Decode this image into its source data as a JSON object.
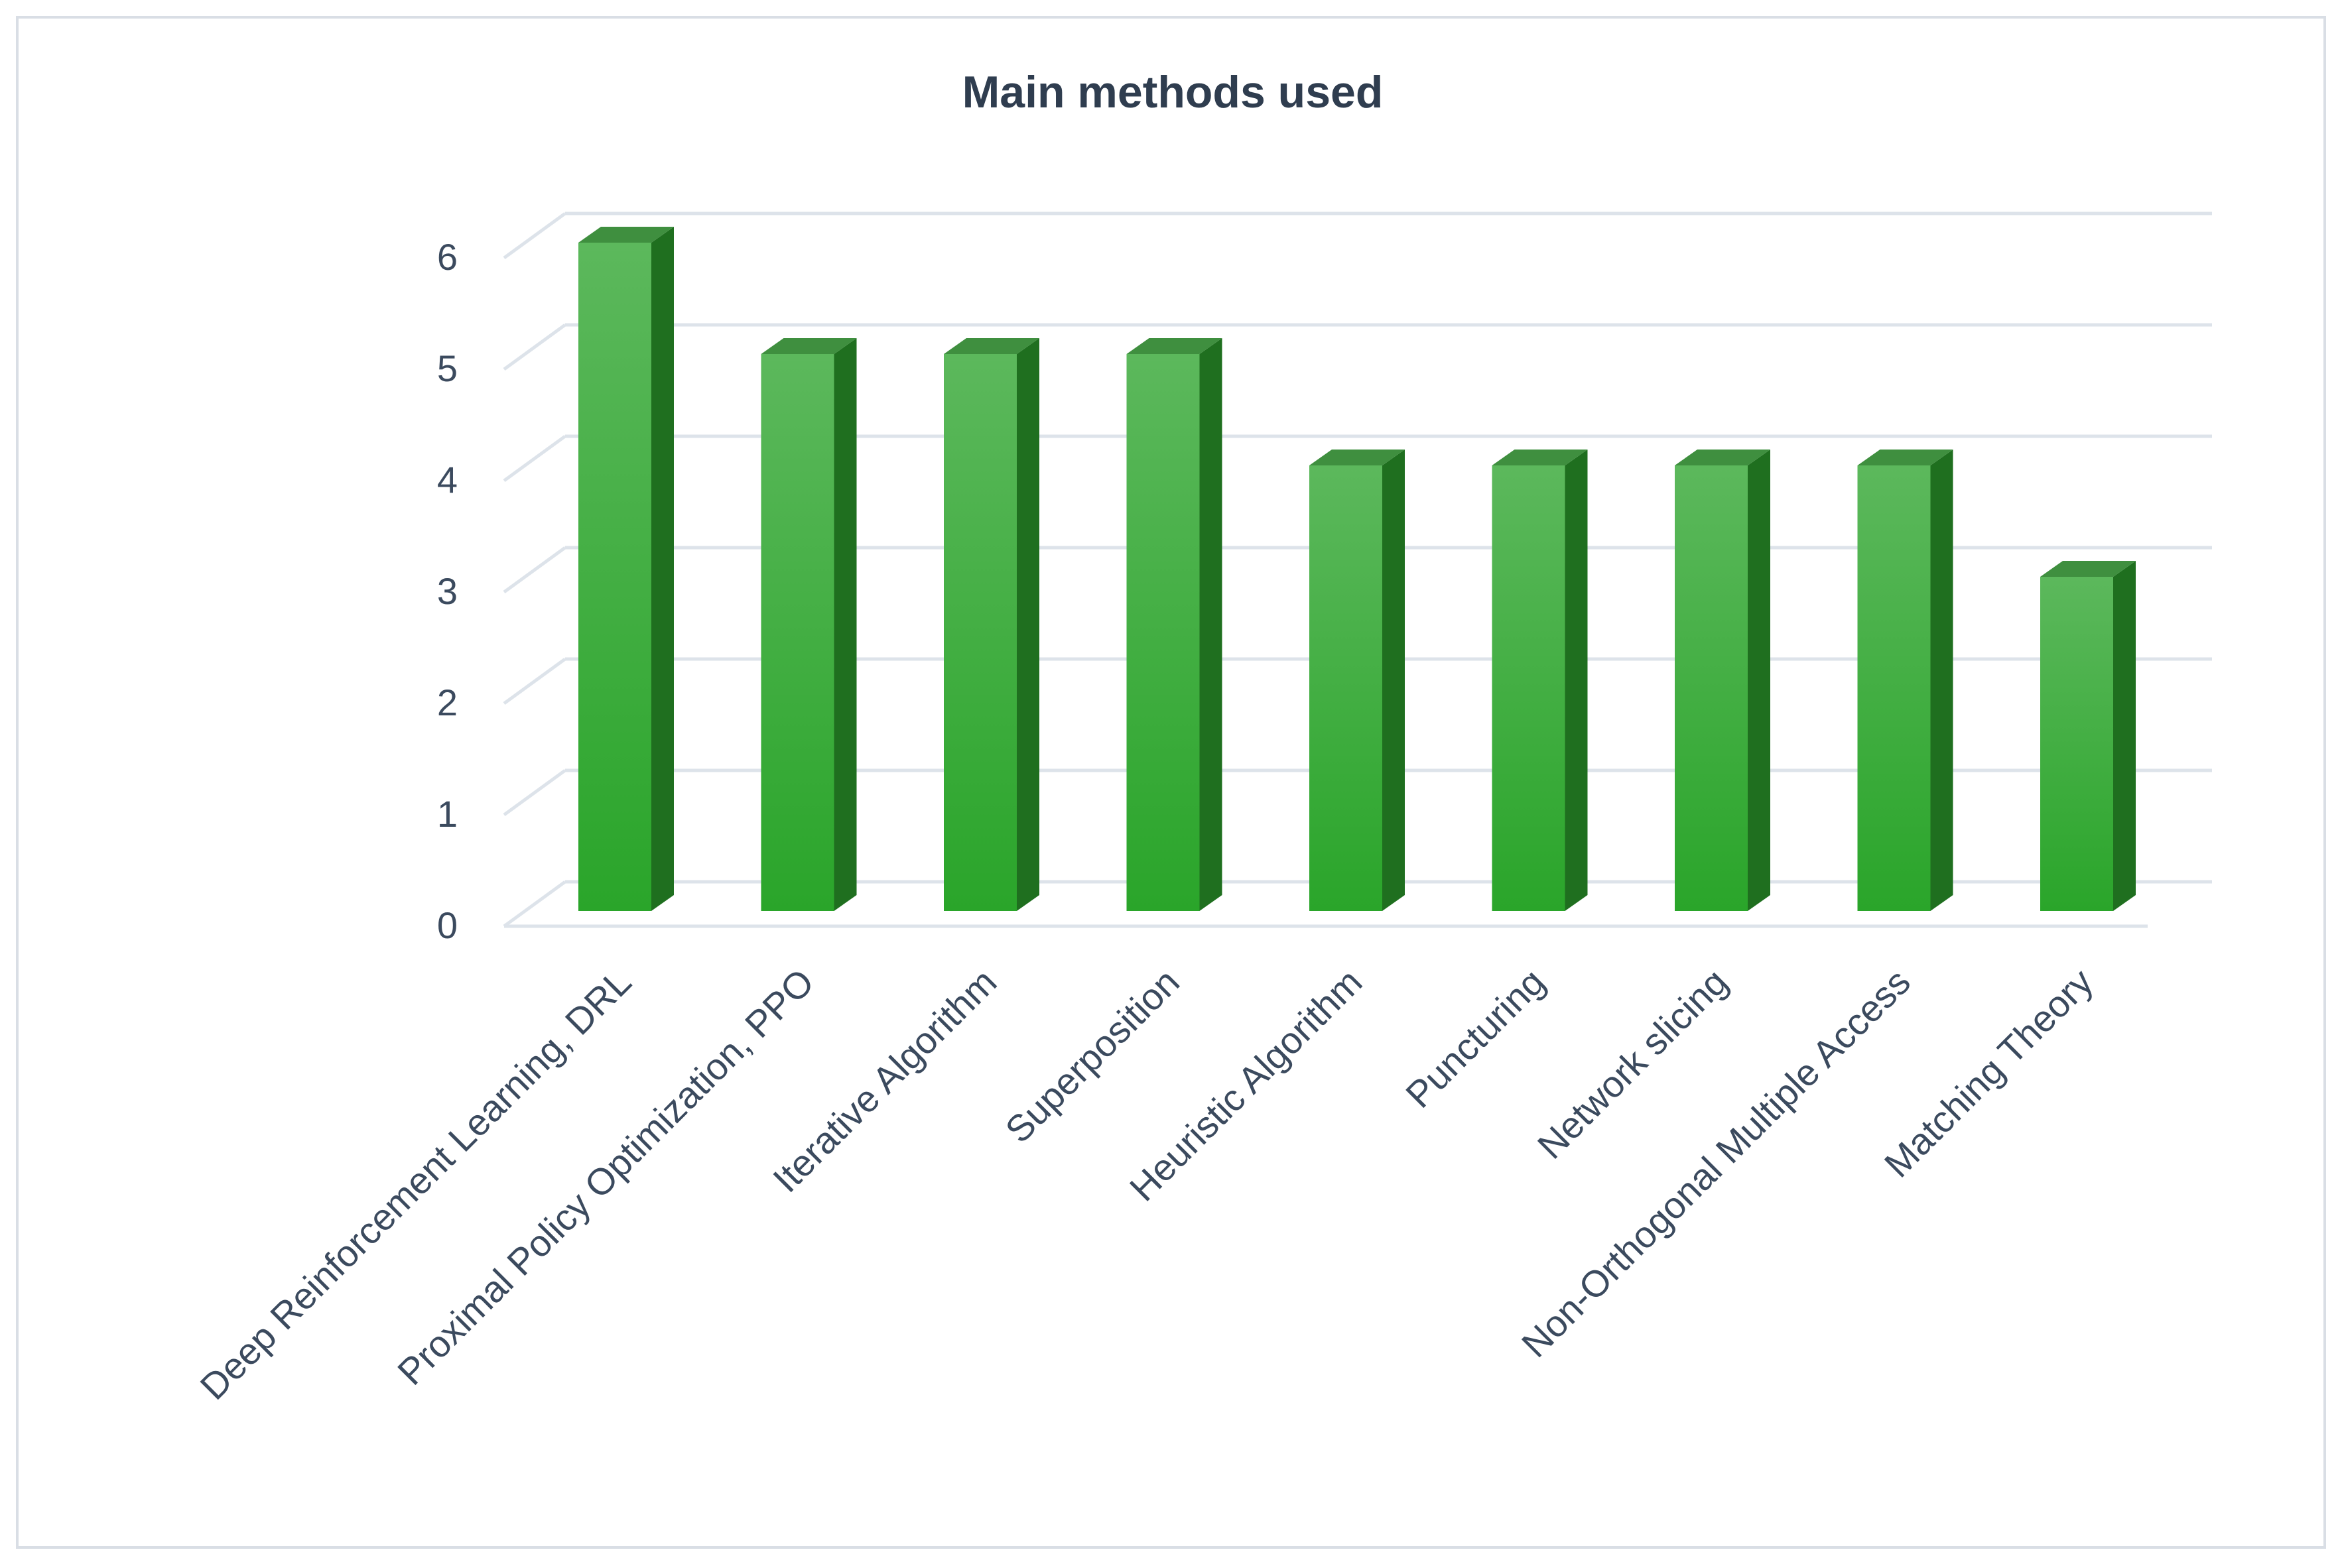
{
  "chart_data": {
    "type": "bar",
    "style": "3d-column",
    "title": "Main methods used",
    "xlabel": "",
    "ylabel": "",
    "categories": [
      "Deep Reinforcement Learning, DRL",
      "Proximal Policy Optimization, PPO",
      "Iterative Algorithm",
      "Superposition",
      "Heuristic Algorithm",
      "Puncturing",
      "Network slicing",
      "Non-Orthogonal Multiple Access",
      "Matching Theory"
    ],
    "values": [
      6,
      5,
      5,
      5,
      4,
      4,
      4,
      4,
      3
    ],
    "ylim": [
      0,
      6
    ],
    "yticks": [
      "0",
      "1",
      "2",
      "3",
      "4",
      "5",
      "6"
    ],
    "grid": true,
    "legend": "none",
    "colors": {
      "bar_top": "#5cb85c",
      "bar_bottom": "#2aa52a",
      "bar_side": "#1f6f1f",
      "bar_cap": "#3f8f3f",
      "grid": "#dde3ea",
      "frame": "#d9dee5",
      "text": "#3b4a5e",
      "title": "#2f3d4f"
    }
  }
}
